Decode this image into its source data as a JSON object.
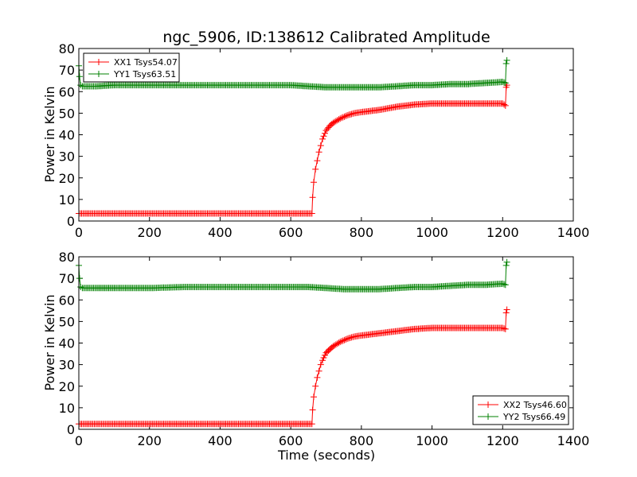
{
  "chart_data": [
    {
      "type": "line",
      "title": "ngc_5906, ID:138612 Calibrated Amplitude",
      "xlabel": "",
      "ylabel": "Power in Kelvin",
      "xlim": [
        0,
        1400
      ],
      "ylim": [
        0,
        80
      ],
      "xticks": [
        0,
        200,
        400,
        600,
        800,
        1000,
        1200,
        1400
      ],
      "yticks": [
        0,
        10,
        20,
        30,
        40,
        50,
        60,
        70,
        80
      ],
      "xtick_labels": [
        "0",
        "200",
        "400",
        "600",
        "800",
        "1000",
        "1200",
        "1400"
      ],
      "ytick_labels": [
        "0",
        "10",
        "20",
        "30",
        "40",
        "50",
        "60",
        "70",
        "80"
      ],
      "grid": false,
      "legend_position": "upper-left",
      "marker": "+",
      "series": [
        {
          "name": "XX1 Tsys54.07",
          "color": "#ff0000",
          "x": [
            0,
            100,
            200,
            300,
            400,
            500,
            600,
            660,
            662,
            665,
            670,
            675,
            680,
            685,
            690,
            700,
            710,
            720,
            740,
            760,
            780,
            800,
            850,
            900,
            950,
            1000,
            1050,
            1100,
            1150,
            1200,
            1208,
            1210,
            1212
          ],
          "y": [
            3.5,
            3.5,
            3.5,
            3.5,
            3.5,
            3.5,
            3.5,
            3.5,
            11,
            18,
            24,
            28,
            32,
            35,
            38,
            42,
            44,
            45.5,
            47.5,
            49,
            50,
            50.5,
            51.5,
            53,
            54,
            54.5,
            54.5,
            54.5,
            54.5,
            54.5,
            53.5,
            62,
            63
          ]
        },
        {
          "name": "YY1 Tsys63.51",
          "color": "#008000",
          "x": [
            0,
            2,
            5,
            10,
            50,
            100,
            200,
            300,
            400,
            500,
            600,
            650,
            700,
            750,
            800,
            850,
            900,
            950,
            1000,
            1050,
            1100,
            1150,
            1200,
            1208,
            1210,
            1212
          ],
          "y": [
            72,
            67,
            63,
            62.5,
            62.5,
            63,
            63,
            63,
            63,
            63,
            63,
            62.5,
            62,
            62,
            62,
            62,
            62.5,
            63,
            63,
            63.5,
            63.5,
            64,
            64.5,
            64,
            73,
            74.5
          ]
        }
      ]
    },
    {
      "type": "line",
      "title": "",
      "xlabel": "Time (seconds)",
      "ylabel": "Power in Kelvin",
      "xlim": [
        0,
        1400
      ],
      "ylim": [
        0,
        80
      ],
      "xticks": [
        0,
        200,
        400,
        600,
        800,
        1000,
        1200,
        1400
      ],
      "yticks": [
        0,
        10,
        20,
        30,
        40,
        50,
        60,
        70,
        80
      ],
      "xtick_labels": [
        "0",
        "200",
        "400",
        "600",
        "800",
        "1000",
        "1200",
        "1400"
      ],
      "ytick_labels": [
        "0",
        "10",
        "20",
        "30",
        "40",
        "50",
        "60",
        "70",
        "80"
      ],
      "grid": false,
      "legend_position": "lower-right",
      "marker": "+",
      "series": [
        {
          "name": "XX2 Tsys46.60",
          "color": "#ff0000",
          "x": [
            0,
            100,
            200,
            300,
            400,
            500,
            600,
            660,
            662,
            665,
            670,
            675,
            680,
            685,
            690,
            700,
            710,
            720,
            740,
            760,
            780,
            800,
            850,
            900,
            950,
            1000,
            1050,
            1100,
            1150,
            1200,
            1208,
            1210,
            1212
          ],
          "y": [
            2.5,
            2.5,
            2.5,
            2.5,
            2.5,
            2.5,
            2.5,
            2.5,
            9,
            15,
            20,
            24,
            27,
            30,
            32,
            35.5,
            37,
            38.5,
            40.5,
            42,
            43,
            43.5,
            44.5,
            45.5,
            46.5,
            47,
            47,
            47,
            47,
            47,
            46.5,
            54,
            55.5
          ]
        },
        {
          "name": "YY2 Tsys66.49",
          "color": "#008000",
          "x": [
            0,
            2,
            5,
            10,
            50,
            100,
            200,
            300,
            400,
            500,
            600,
            650,
            700,
            750,
            800,
            850,
            900,
            950,
            1000,
            1050,
            1100,
            1150,
            1200,
            1208,
            1210,
            1212
          ],
          "y": [
            76,
            70,
            66,
            65.5,
            65.5,
            65.5,
            65.5,
            66,
            66,
            66,
            66,
            66,
            65.5,
            65,
            65,
            65,
            65.5,
            66,
            66,
            66.5,
            67,
            67,
            67.5,
            67,
            76,
            77.5
          ]
        }
      ]
    }
  ]
}
